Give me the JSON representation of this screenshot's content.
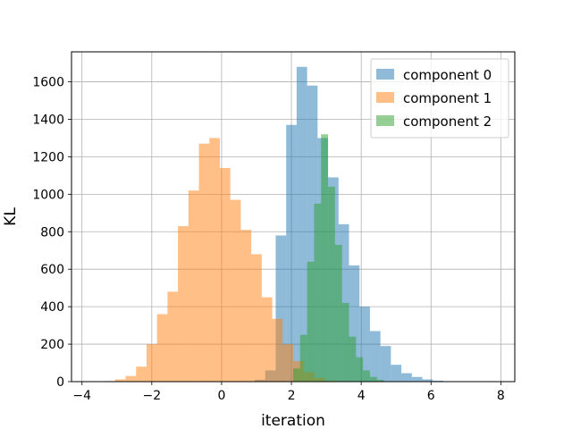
{
  "chart_data": {
    "type": "bar",
    "xlabel": "iteration",
    "ylabel": "KL",
    "xlim": [
      -4.3,
      8.4
    ],
    "ylim": [
      0,
      1760
    ],
    "xticks": [
      -4,
      -2,
      0,
      2,
      4,
      6,
      8
    ],
    "xtick_labels": [
      "−4",
      "−2",
      "0",
      "2",
      "4",
      "6",
      "8"
    ],
    "yticks": [
      0,
      200,
      400,
      600,
      800,
      1000,
      1200,
      1400,
      1600
    ],
    "ytick_labels": [
      "0",
      "200",
      "400",
      "600",
      "800",
      "1000",
      "1200",
      "1400",
      "1600"
    ],
    "grid": true,
    "legend_position": "top-right",
    "colors": [
      "#1f77b4",
      "#ff7f0e",
      "#2ca02c"
    ],
    "bar_alpha": 0.5,
    "series": [
      {
        "name": "component 0",
        "bins": [
          {
            "x0": 0.95,
            "x1": 1.25,
            "y": 10
          },
          {
            "x0": 1.25,
            "x1": 1.55,
            "y": 60
          },
          {
            "x0": 1.55,
            "x1": 1.85,
            "y": 780
          },
          {
            "x0": 1.85,
            "x1": 2.15,
            "y": 1370
          },
          {
            "x0": 2.15,
            "x1": 2.45,
            "y": 1680
          },
          {
            "x0": 2.45,
            "x1": 2.75,
            "y": 1580
          },
          {
            "x0": 2.75,
            "x1": 3.05,
            "y": 1300
          },
          {
            "x0": 3.05,
            "x1": 3.35,
            "y": 1090
          },
          {
            "x0": 3.35,
            "x1": 3.65,
            "y": 840
          },
          {
            "x0": 3.65,
            "x1": 3.95,
            "y": 620
          },
          {
            "x0": 3.95,
            "x1": 4.25,
            "y": 400
          },
          {
            "x0": 4.25,
            "x1": 4.55,
            "y": 270
          },
          {
            "x0": 4.55,
            "x1": 4.85,
            "y": 190
          },
          {
            "x0": 4.85,
            "x1": 5.15,
            "y": 90
          },
          {
            "x0": 5.15,
            "x1": 5.45,
            "y": 45
          },
          {
            "x0": 5.45,
            "x1": 5.75,
            "y": 25
          },
          {
            "x0": 5.75,
            "x1": 6.05,
            "y": 12
          },
          {
            "x0": 6.05,
            "x1": 6.35,
            "y": 5
          }
        ]
      },
      {
        "name": "component 1",
        "bins": [
          {
            "x0": -3.35,
            "x1": -3.05,
            "y": 3
          },
          {
            "x0": -3.05,
            "x1": -2.75,
            "y": 12
          },
          {
            "x0": -2.75,
            "x1": -2.45,
            "y": 30
          },
          {
            "x0": -2.45,
            "x1": -2.15,
            "y": 80
          },
          {
            "x0": -2.15,
            "x1": -1.85,
            "y": 200
          },
          {
            "x0": -1.85,
            "x1": -1.55,
            "y": 360
          },
          {
            "x0": -1.55,
            "x1": -1.25,
            "y": 480
          },
          {
            "x0": -1.25,
            "x1": -0.95,
            "y": 830
          },
          {
            "x0": -0.95,
            "x1": -0.65,
            "y": 1020
          },
          {
            "x0": -0.65,
            "x1": -0.35,
            "y": 1270
          },
          {
            "x0": -0.35,
            "x1": -0.05,
            "y": 1300
          },
          {
            "x0": -0.05,
            "x1": 0.25,
            "y": 1140
          },
          {
            "x0": 0.25,
            "x1": 0.55,
            "y": 970
          },
          {
            "x0": 0.55,
            "x1": 0.85,
            "y": 810
          },
          {
            "x0": 0.85,
            "x1": 1.15,
            "y": 680
          },
          {
            "x0": 1.15,
            "x1": 1.45,
            "y": 450
          },
          {
            "x0": 1.45,
            "x1": 1.75,
            "y": 335
          },
          {
            "x0": 1.75,
            "x1": 2.05,
            "y": 200
          },
          {
            "x0": 2.05,
            "x1": 2.35,
            "y": 110
          },
          {
            "x0": 2.35,
            "x1": 2.65,
            "y": 50
          },
          {
            "x0": 2.65,
            "x1": 2.95,
            "y": 20
          },
          {
            "x0": 2.95,
            "x1": 3.25,
            "y": 5
          }
        ]
      },
      {
        "name": "component 2",
        "bins": [
          {
            "x0": 2.05,
            "x1": 2.25,
            "y": 70
          },
          {
            "x0": 2.25,
            "x1": 2.45,
            "y": 250
          },
          {
            "x0": 2.45,
            "x1": 2.65,
            "y": 640
          },
          {
            "x0": 2.65,
            "x1": 2.85,
            "y": 950
          },
          {
            "x0": 2.85,
            "x1": 3.05,
            "y": 1320
          },
          {
            "x0": 3.05,
            "x1": 3.25,
            "y": 1040
          },
          {
            "x0": 3.25,
            "x1": 3.45,
            "y": 730
          },
          {
            "x0": 3.45,
            "x1": 3.65,
            "y": 420
          },
          {
            "x0": 3.65,
            "x1": 3.85,
            "y": 240
          },
          {
            "x0": 3.85,
            "x1": 4.05,
            "y": 130
          },
          {
            "x0": 4.05,
            "x1": 4.25,
            "y": 60
          },
          {
            "x0": 4.25,
            "x1": 4.45,
            "y": 25
          },
          {
            "x0": 4.45,
            "x1": 4.65,
            "y": 10
          }
        ]
      }
    ]
  }
}
